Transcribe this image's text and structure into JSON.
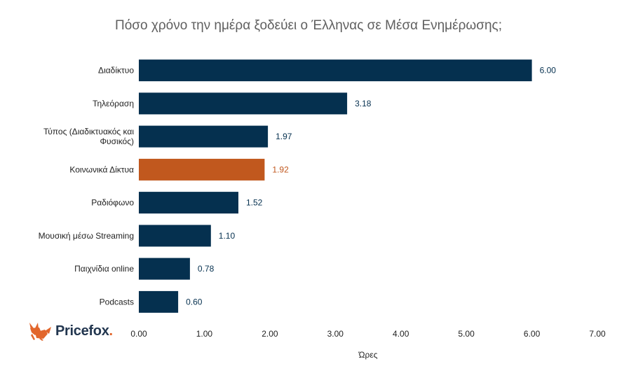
{
  "brand": {
    "name": "Pricefox",
    "suffix": ".",
    "accent": "#e2662c",
    "dark": "#22364f"
  },
  "chart_data": {
    "type": "bar",
    "orientation": "horizontal",
    "title": "Πόσο χρόνο την ημέρα ξοδεύει ο Έλληνας σε Μέσα Ενημέρωσης;",
    "xlabel": "Ώρες",
    "ylabel": "",
    "xlim": [
      0,
      7
    ],
    "xticks": [
      "0.00",
      "1.00",
      "2.00",
      "3.00",
      "4.00",
      "5.00",
      "6.00",
      "7.00"
    ],
    "categories": [
      [
        "Διαδίκτυο"
      ],
      [
        "Τηλεόραση"
      ],
      [
        "Τύπος (Διαδικτυακός και",
        "Φυσικός)"
      ],
      [
        "Κοινωνικά Δίκτυα"
      ],
      [
        "Ραδιόφωνο"
      ],
      [
        "Μουσική μέσω Streaming"
      ],
      [
        "Παιχνίδια online"
      ],
      [
        "Podcasts"
      ]
    ],
    "values": [
      6.0,
      3.18,
      1.97,
      1.92,
      1.52,
      1.1,
      0.78,
      0.6
    ],
    "value_labels": [
      "6.00",
      "3.18",
      "1.97",
      "1.92",
      "1.52",
      "1.10",
      "0.78",
      "0.60"
    ],
    "colors": [
      "#05304f",
      "#05304f",
      "#05304f",
      "#c1581e",
      "#05304f",
      "#05304f",
      "#05304f",
      "#05304f"
    ],
    "grid": false,
    "legend": "none"
  }
}
